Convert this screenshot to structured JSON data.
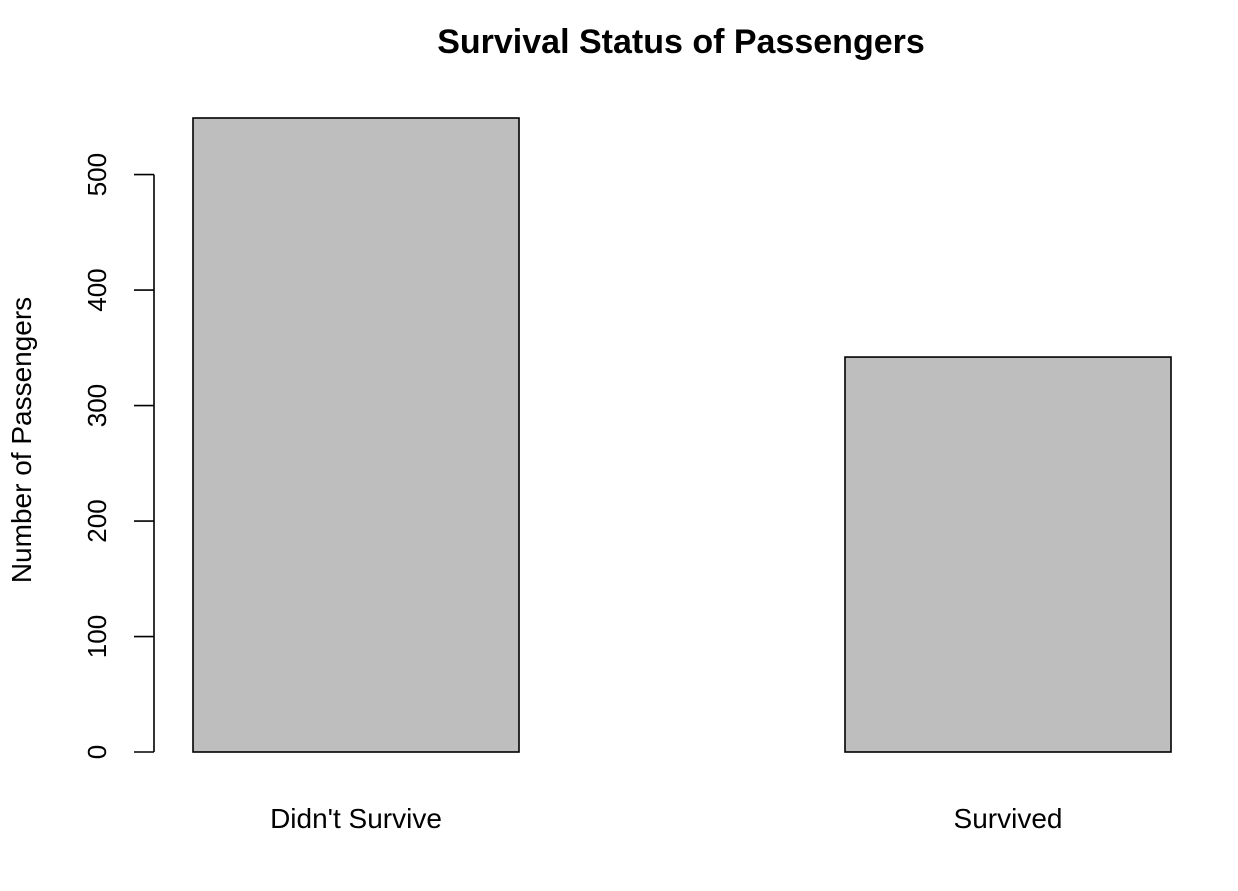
{
  "chart_data": {
    "type": "bar",
    "title": "Survival Status of Passengers",
    "xlabel": "",
    "ylabel": "Number of Passengers",
    "categories": [
      "Didn't Survive",
      "Survived"
    ],
    "values": [
      549,
      342
    ],
    "ylim": [
      0,
      549
    ],
    "yticks": [
      0,
      100,
      200,
      300,
      400,
      500
    ],
    "bar_color": "#bebebe",
    "grid": false,
    "legend": "none"
  }
}
